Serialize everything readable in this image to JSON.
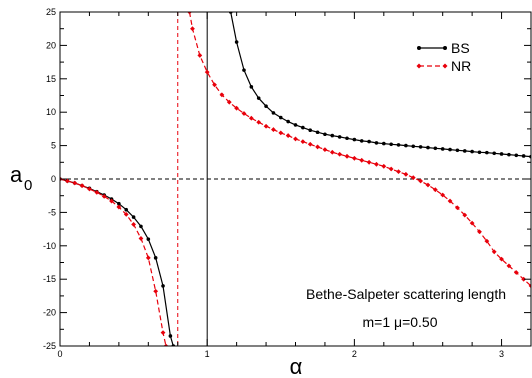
{
  "chart_data": {
    "type": "line",
    "title": "",
    "xlabel": "α",
    "ylabel_main": "a",
    "ylabel_sub": "0",
    "xlim": [
      0,
      1.6
    ],
    "ylim": [
      -25,
      25
    ],
    "xticks": [
      0,
      0.5,
      1,
      1.5
    ],
    "xtick_labels": [
      "0",
      "1",
      "2",
      "3"
    ],
    "yticks": [
      -25,
      -20,
      -15,
      -10,
      -5,
      0,
      5,
      10,
      15,
      20,
      25
    ],
    "ytick_labels": [
      "-25",
      "-20",
      "-15",
      "-10",
      "-5",
      "0",
      "5",
      "10",
      "15",
      "20",
      "25"
    ],
    "grid": false,
    "legend_position": "top-right",
    "annotations": [
      "Bethe-Salpeter scattering length",
      "m=1 μ=0.50"
    ],
    "reference_lines": [
      {
        "orientation": "horizontal",
        "value": 0,
        "style": "dashed",
        "color": "#000000"
      },
      {
        "orientation": "vertical",
        "value": 0.5,
        "style": "solid",
        "color": "#000000"
      },
      {
        "orientation": "vertical",
        "value": 0.4,
        "style": "dashed",
        "color": "#e8000b"
      }
    ],
    "series": [
      {
        "name": "BS",
        "color": "#000000",
        "dash": "solid",
        "marker": "circle",
        "segments": [
          [
            [
              0,
              0
            ],
            [
              0.025,
              -0.3
            ],
            [
              0.05,
              -0.6
            ],
            [
              0.075,
              -1.0
            ],
            [
              0.1,
              -1.4
            ],
            [
              0.125,
              -1.9
            ],
            [
              0.15,
              -2.4
            ],
            [
              0.175,
              -3.0
            ],
            [
              0.2,
              -3.7
            ],
            [
              0.225,
              -4.6
            ],
            [
              0.25,
              -5.7
            ],
            [
              0.275,
              -7.1
            ],
            [
              0.3,
              -9.0
            ],
            [
              0.325,
              -11.8
            ],
            [
              0.35,
              -16.0
            ],
            [
              0.375,
              -23.5
            ],
            [
              0.385,
              -25
            ]
          ],
          [
            [
              0.58,
              25
            ],
            [
              0.6,
              20.5
            ],
            [
              0.625,
              16.3
            ],
            [
              0.65,
              13.8
            ],
            [
              0.675,
              12.1
            ],
            [
              0.7,
              10.9
            ],
            [
              0.725,
              9.9
            ],
            [
              0.75,
              9.2
            ],
            [
              0.775,
              8.6
            ],
            [
              0.8,
              8.1
            ],
            [
              0.825,
              7.7
            ],
            [
              0.85,
              7.3
            ],
            [
              0.875,
              7.0
            ],
            [
              0.9,
              6.7
            ],
            [
              0.925,
              6.5
            ],
            [
              0.95,
              6.3
            ],
            [
              0.975,
              6.1
            ],
            [
              1.0,
              5.9
            ],
            [
              1.025,
              5.7
            ],
            [
              1.05,
              5.6
            ],
            [
              1.075,
              5.4
            ],
            [
              1.1,
              5.3
            ],
            [
              1.125,
              5.2
            ],
            [
              1.15,
              5.1
            ],
            [
              1.175,
              5.0
            ],
            [
              1.2,
              4.9
            ],
            [
              1.225,
              4.8
            ],
            [
              1.25,
              4.7
            ],
            [
              1.275,
              4.6
            ],
            [
              1.3,
              4.5
            ],
            [
              1.325,
              4.4
            ],
            [
              1.35,
              4.3
            ],
            [
              1.375,
              4.2
            ],
            [
              1.4,
              4.1
            ],
            [
              1.425,
              4.0
            ],
            [
              1.45,
              3.95
            ],
            [
              1.475,
              3.85
            ],
            [
              1.5,
              3.75
            ],
            [
              1.525,
              3.65
            ],
            [
              1.55,
              3.55
            ],
            [
              1.575,
              3.45
            ],
            [
              1.6,
              3.35
            ]
          ]
        ]
      },
      {
        "name": "NR",
        "color": "#e8000b",
        "dash": "dashed",
        "marker": "diamond",
        "segments": [
          [
            [
              0,
              0
            ],
            [
              0.025,
              -0.3
            ],
            [
              0.05,
              -0.6
            ],
            [
              0.075,
              -1.0
            ],
            [
              0.1,
              -1.5
            ],
            [
              0.125,
              -2.0
            ],
            [
              0.15,
              -2.6
            ],
            [
              0.175,
              -3.3
            ],
            [
              0.2,
              -4.2
            ],
            [
              0.225,
              -5.3
            ],
            [
              0.25,
              -6.8
            ],
            [
              0.275,
              -8.9
            ],
            [
              0.3,
              -11.8
            ],
            [
              0.325,
              -16.8
            ],
            [
              0.35,
              -23.0
            ],
            [
              0.36,
              -25
            ]
          ],
          [
            [
              0.44,
              25
            ],
            [
              0.45,
              22.5
            ],
            [
              0.475,
              18.5
            ],
            [
              0.5,
              16.0
            ],
            [
              0.525,
              14.1
            ],
            [
              0.55,
              12.6
            ],
            [
              0.575,
              11.5
            ],
            [
              0.6,
              10.6
            ],
            [
              0.625,
              9.8
            ],
            [
              0.65,
              9.1
            ],
            [
              0.675,
              8.5
            ],
            [
              0.7,
              7.9
            ],
            [
              0.725,
              7.4
            ],
            [
              0.75,
              6.9
            ],
            [
              0.775,
              6.5
            ],
            [
              0.8,
              6.0
            ],
            [
              0.825,
              5.6
            ],
            [
              0.85,
              5.2
            ],
            [
              0.875,
              4.8
            ],
            [
              0.9,
              4.4
            ],
            [
              0.925,
              4.0
            ],
            [
              0.95,
              3.7
            ],
            [
              0.975,
              3.4
            ],
            [
              1.0,
              3.1
            ],
            [
              1.025,
              2.8
            ],
            [
              1.05,
              2.5
            ],
            [
              1.075,
              2.2
            ],
            [
              1.1,
              1.9
            ],
            [
              1.125,
              1.5
            ],
            [
              1.15,
              1.1
            ],
            [
              1.175,
              0.7
            ],
            [
              1.2,
              0.2
            ],
            [
              1.225,
              -0.3
            ],
            [
              1.25,
              -0.9
            ],
            [
              1.275,
              -1.6
            ],
            [
              1.3,
              -2.4
            ],
            [
              1.325,
              -3.3
            ],
            [
              1.35,
              -4.3
            ],
            [
              1.375,
              -5.4
            ],
            [
              1.4,
              -6.6
            ],
            [
              1.425,
              -7.9
            ],
            [
              1.45,
              -9.3
            ],
            [
              1.475,
              -10.9
            ],
            [
              1.5,
              -12.0
            ],
            [
              1.525,
              -13.0
            ],
            [
              1.55,
              -14.0
            ],
            [
              1.575,
              -15.0
            ],
            [
              1.6,
              -16.0
            ]
          ]
        ]
      }
    ]
  }
}
